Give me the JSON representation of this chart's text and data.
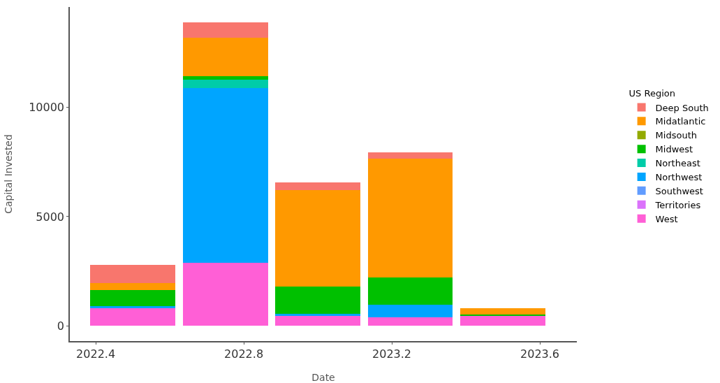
{
  "chart_data": {
    "type": "bar",
    "stacked": true,
    "xlabel": "Date",
    "ylabel": "Capital Invested",
    "legend_title": "US Region",
    "legend": "right",
    "grid": false,
    "x": [
      2022.5,
      2022.75,
      2023.0,
      2023.25,
      2023.5
    ],
    "xlim": [
      2022.33,
      2023.7
    ],
    "xticks": [
      2022.4,
      2022.8,
      2023.2,
      2023.6
    ],
    "ylim": [
      -700,
      14600
    ],
    "yticks": [
      0,
      5000,
      10000
    ],
    "series": [
      {
        "name": "West",
        "color": "#ff5fd6",
        "values": [
          810,
          2900,
          440,
          375,
          455
        ]
      },
      {
        "name": "Territories",
        "color": "#db72fb",
        "values": [
          null,
          null,
          null,
          null,
          null
        ]
      },
      {
        "name": "Southwest",
        "color": "#619cff",
        "values": [
          null,
          null,
          null,
          null,
          null
        ]
      },
      {
        "name": "Northwest",
        "color": "#00a5ff",
        "values": [
          100,
          8000,
          105,
          595,
          null
        ]
      },
      {
        "name": "Northeast",
        "color": "#00cca8",
        "values": [
          null,
          370,
          null,
          null,
          null
        ]
      },
      {
        "name": "Midwest",
        "color": "#00c000",
        "values": [
          740,
          160,
          1250,
          1240,
          65
        ]
      },
      {
        "name": "Midsouth",
        "color": "#93aa00",
        "values": [
          null,
          null,
          null,
          null,
          null
        ]
      },
      {
        "name": "Midatlantic",
        "color": "#ff9900",
        "values": [
          300,
          1770,
          4405,
          5450,
          300
        ]
      },
      {
        "name": "Deep South",
        "color": "#f8766d",
        "values": [
          835,
          690,
          370,
          290,
          null
        ]
      }
    ]
  }
}
